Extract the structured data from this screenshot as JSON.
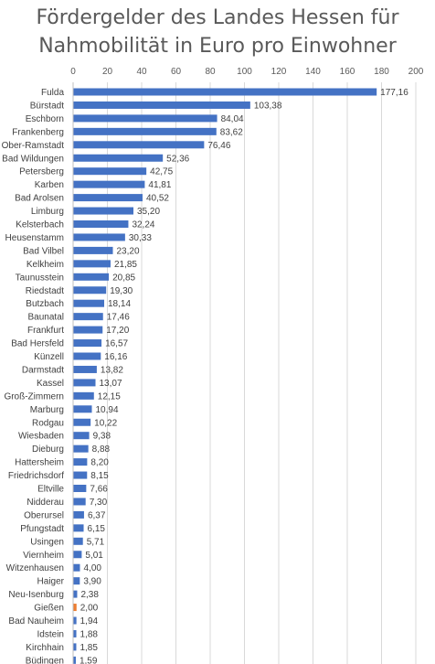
{
  "chart_data": {
    "type": "bar",
    "orientation": "horizontal",
    "title_line1": "Fördergelder des Landes Hessen für",
    "title_line2": "Nahmobilität in Euro pro Einwohner",
    "xlim": [
      0,
      200
    ],
    "x_ticks": [
      "0",
      "20",
      "40",
      "60",
      "80",
      "100",
      "120",
      "140",
      "160",
      "180",
      "200"
    ],
    "x_tick_values": [
      0,
      20,
      40,
      60,
      80,
      100,
      120,
      140,
      160,
      180,
      200
    ],
    "axis_position": "top",
    "grid": true,
    "bar_color": "#4472c4",
    "highlight_color": "#ed7d31",
    "highlight_category": "Gießen",
    "categories": [
      "Fulda",
      "Bürstadt",
      "Eschborn",
      "Frankenberg",
      "Ober-Ramstadt",
      "Bad Wildungen",
      "Petersberg",
      "Karben",
      "Bad Arolsen",
      "Limburg",
      "Kelsterbach",
      "Heusenstamm",
      "Bad Vilbel",
      "Kelkheim",
      "Taunusstein",
      "Riedstadt",
      "Butzbach",
      "Baunatal",
      "Frankfurt",
      "Bad Hersfeld",
      "Künzell",
      "Darmstadt",
      "Kassel",
      "Groß-Zimmern",
      "Marburg",
      "Rodgau",
      "Wiesbaden",
      "Dieburg",
      "Hattersheim",
      "Friedrichsdorf",
      "Eltville",
      "Nidderau",
      "Oberursel",
      "Pfungstadt",
      "Usingen",
      "Viernheim",
      "Witzenhausen",
      "Haiger",
      "Neu-Isenburg",
      "Gießen",
      "Bad Nauheim",
      "Idstein",
      "Kirchhain",
      "Büdingen"
    ],
    "values": [
      177.16,
      103.38,
      84.04,
      83.62,
      76.46,
      52.36,
      42.75,
      41.81,
      40.52,
      35.2,
      32.24,
      30.33,
      23.2,
      21.85,
      20.85,
      19.3,
      18.14,
      17.46,
      17.2,
      16.57,
      16.16,
      13.82,
      13.07,
      12.15,
      10.94,
      10.22,
      9.38,
      8.88,
      8.2,
      8.15,
      7.66,
      7.3,
      6.37,
      6.15,
      5.71,
      5.01,
      4.0,
      3.9,
      2.38,
      2.0,
      1.94,
      1.88,
      1.85,
      1.59
    ],
    "value_labels": [
      "177,16",
      "103,38",
      "84,04",
      "83,62",
      "76,46",
      "52,36",
      "42,75",
      "41,81",
      "40,52",
      "35,20",
      "32,24",
      "30,33",
      "23,20",
      "21,85",
      "20,85",
      "19,30",
      "18,14",
      "17,46",
      "17,20",
      "16,57",
      "16,16",
      "13,82",
      "13,07",
      "12,15",
      "10,94",
      "10,22",
      "9,38",
      "8,88",
      "8,20",
      "8,15",
      "7,66",
      "7,30",
      "6,37",
      "6,15",
      "5,71",
      "5,01",
      "4,00",
      "3,90",
      "2,38",
      "2,00",
      "1,94",
      "1,88",
      "1,85",
      "1,59"
    ]
  }
}
